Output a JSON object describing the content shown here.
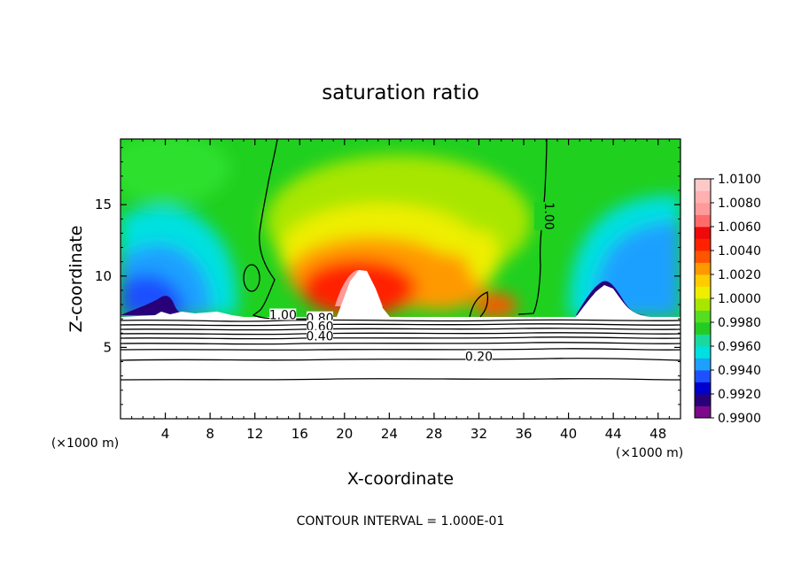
{
  "chart_data": {
    "type": "heatmap",
    "title": "saturation ratio",
    "xlabel": "X-coordinate",
    "ylabel": "Z-coordinate",
    "x_unit_label": "(×1000 m)",
    "x_unit_label_right": "(×1000 m)",
    "xlim": [
      0,
      50
    ],
    "ylim": [
      0,
      19.6
    ],
    "x_ticks": [
      4,
      8,
      12,
      16,
      20,
      24,
      28,
      32,
      36,
      40,
      44,
      48
    ],
    "x_tick_labels": [
      "4",
      "8",
      "12",
      "16",
      "20",
      "24",
      "28",
      "32",
      "36",
      "40",
      "44",
      "48"
    ],
    "y_ticks": [
      5,
      10,
      15
    ],
    "y_tick_labels": [
      "5",
      "10",
      "15"
    ],
    "colorbar": {
      "min": 0.99,
      "max": 1.01,
      "labels": [
        "1.0100",
        "1.0080",
        "1.0060",
        "1.0040",
        "1.0020",
        "1.0000",
        "0.9980",
        "0.9960",
        "0.9940",
        "0.9920",
        "0.9900"
      ],
      "colors": [
        "#7a0a8a",
        "#28007a",
        "#0000cc",
        "#1e50ff",
        "#1ea0ff",
        "#00e0e0",
        "#19d9a0",
        "#23cc23",
        "#55dd22",
        "#a8e600",
        "#eeee00",
        "#ffcc00",
        "#ff9900",
        "#ff5500",
        "#ff2200",
        "#ee0a0a",
        "#ff6a6a",
        "#ff9a9a",
        "#ffb0b0",
        "#ffc8c8"
      ]
    },
    "contour_labels": [
      {
        "text": "1.00",
        "x": 37.5,
        "y": 14.2
      },
      {
        "text": "1.00",
        "x": 14.5,
        "y": 7.1
      },
      {
        "text": "0.80",
        "x": 17.8,
        "y": 6.9
      },
      {
        "text": "0.60",
        "x": 17.8,
        "y": 6.3
      },
      {
        "text": "0.40",
        "x": 17.8,
        "y": 5.6
      },
      {
        "text": "0.20",
        "x": 32.0,
        "y": 4.2
      }
    ],
    "footer": "CONTOUR INTERVAL = 1.000E-01"
  }
}
